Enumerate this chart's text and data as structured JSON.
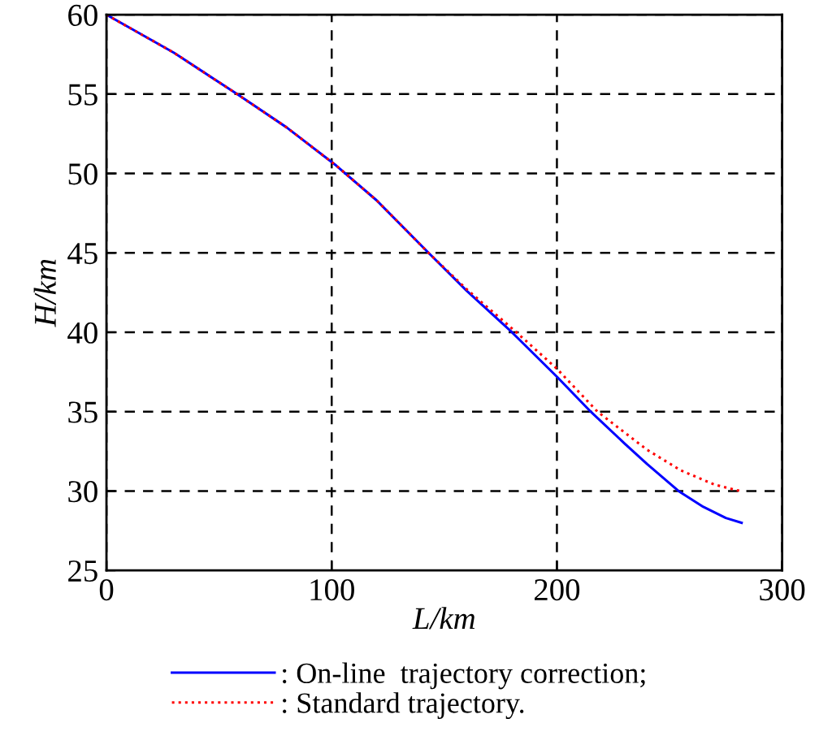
{
  "chart_data": {
    "type": "line",
    "xlabel": "L/km",
    "ylabel": "H/km",
    "xlim": [
      0,
      300
    ],
    "ylim": [
      25,
      60
    ],
    "xticks": [
      0,
      100,
      200,
      300
    ],
    "yticks": [
      25,
      30,
      35,
      40,
      45,
      50,
      55,
      60
    ],
    "grid": true,
    "legend": "bottom",
    "series": [
      {
        "name": ": On-line  trajectory correction;",
        "color": "#0000ff",
        "line_style": "solid",
        "x": [
          0,
          30,
          58,
          80,
          102,
          120,
          143,
          160,
          180,
          200,
          215,
          230,
          240,
          254,
          265,
          275,
          282
        ],
        "values": [
          60,
          57.6,
          55,
          52.9,
          50.5,
          48.3,
          45,
          42.6,
          40,
          37.2,
          35,
          33,
          31.7,
          30,
          29,
          28.3,
          28.0
        ]
      },
      {
        "name": ": Standard trajectory.",
        "color": "#ff0000",
        "line_style": "dotted",
        "x": [
          0,
          30,
          58,
          80,
          102,
          120,
          143,
          160,
          182,
          200,
          218,
          240,
          255,
          270,
          280,
          282
        ],
        "values": [
          60,
          57.6,
          55,
          52.9,
          50.5,
          48.3,
          45,
          42.7,
          40,
          37.7,
          35,
          32.6,
          31.3,
          30.4,
          30.05,
          30
        ]
      }
    ]
  }
}
